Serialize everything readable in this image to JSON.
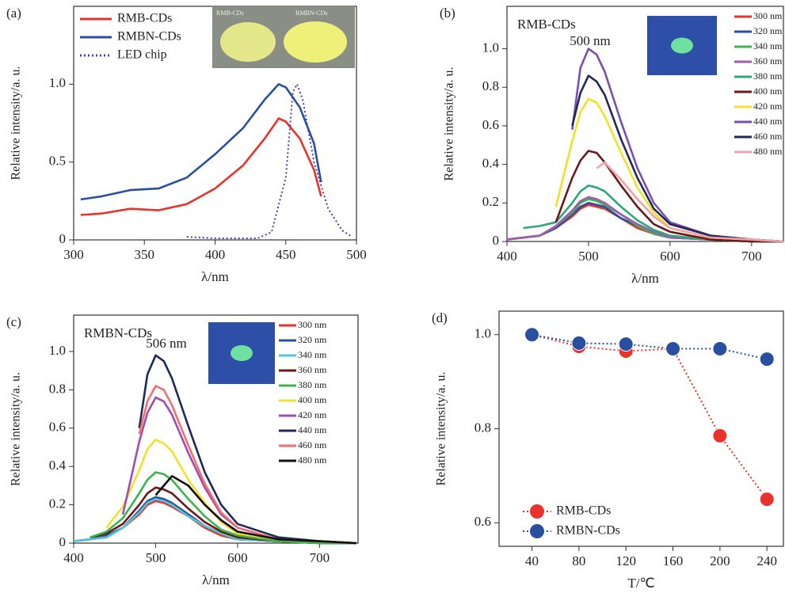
{
  "chart_data": [
    {
      "type": "line",
      "panel_label": "(a)",
      "xlabel": "λ/nm",
      "ylabel": "Relative intensity/a. u.",
      "xlim": [
        300,
        500
      ],
      "ylim": [
        0,
        1.5
      ],
      "xticks": [
        300,
        350,
        400,
        450,
        500
      ],
      "yticks": [
        0,
        0.5,
        {
          "value": 1,
          "label": "1.0"
        }
      ],
      "legend": "upper left",
      "inset_labels": [
        "RMB-CDs",
        "RMBN-CDs"
      ],
      "series": [
        {
          "name": "RMB-CDs",
          "color": "#e8322b",
          "line_style": "solid",
          "x": [
            305,
            320,
            340,
            360,
            380,
            400,
            420,
            435,
            445,
            450,
            460,
            470,
            475
          ],
          "values": [
            0.16,
            0.17,
            0.2,
            0.19,
            0.23,
            0.33,
            0.48,
            0.65,
            0.78,
            0.76,
            0.65,
            0.45,
            0.28
          ]
        },
        {
          "name": "RMBN-CDs",
          "color": "#2b4fa0",
          "line_style": "solid",
          "x": [
            305,
            320,
            340,
            360,
            380,
            400,
            420,
            435,
            445,
            450,
            460,
            470,
            475
          ],
          "values": [
            0.26,
            0.28,
            0.32,
            0.33,
            0.4,
            0.55,
            0.72,
            0.9,
            1.0,
            0.98,
            0.85,
            0.62,
            0.37
          ]
        },
        {
          "name": "LED chip",
          "color": "#4a3fa8",
          "line_style": "dotted",
          "x": [
            380,
            400,
            430,
            440,
            450,
            455,
            458,
            462,
            470,
            480,
            490,
            497
          ],
          "values": [
            0.02,
            0.01,
            0.01,
            0.05,
            0.4,
            0.95,
            1.0,
            0.9,
            0.5,
            0.2,
            0.06,
            0.02
          ]
        }
      ]
    },
    {
      "type": "line",
      "panel_label": "(b)",
      "title": "RMB-CDs",
      "annotation": "500 nm",
      "xlabel": "λ/nm",
      "ylabel": "Relative intensity/a. u.",
      "xlim": [
        400,
        739
      ],
      "ylim": [
        0,
        1.22
      ],
      "xticks": [
        400,
        500,
        600,
        700
      ],
      "yticks": [
        0,
        0.2,
        0.4,
        0.6,
        0.8,
        {
          "value": 1,
          "label": "1.0"
        }
      ],
      "legend": "upper right",
      "x": [
        400,
        420,
        440,
        460,
        480,
        490,
        500,
        510,
        520,
        540,
        560,
        580,
        600,
        650,
        700,
        739
      ],
      "series": [
        {
          "name": "300 nm",
          "color": "#e8322b",
          "values": [
            0.01,
            0.02,
            0.03,
            0.07,
            0.13,
            0.17,
            0.19,
            0.18,
            0.17,
            0.12,
            0.07,
            0.04,
            0.02,
            0.01,
            0,
            0
          ]
        },
        {
          "name": "320 nm",
          "color": "#2b4fa0",
          "values": [
            0.01,
            0.02,
            0.03,
            0.07,
            0.14,
            0.18,
            0.2,
            0.19,
            0.18,
            0.12,
            0.08,
            0.04,
            0.02,
            0.01,
            0,
            0
          ]
        },
        {
          "name": "340 nm",
          "color": "#3cb44b",
          "values": [
            0.01,
            0.02,
            0.03,
            0.08,
            0.15,
            0.2,
            0.22,
            0.21,
            0.19,
            0.14,
            0.08,
            0.04,
            0.02,
            0.01,
            0,
            0
          ]
        },
        {
          "name": "360 nm",
          "color": "#a05cb0",
          "values": [
            0.01,
            0.02,
            0.03,
            0.08,
            0.16,
            0.21,
            0.23,
            0.22,
            0.2,
            0.14,
            0.09,
            0.05,
            0.02,
            0.01,
            0,
            0
          ]
        },
        {
          "name": "380 nm",
          "color": "#2aa878",
          "values": [
            null,
            0.07,
            0.08,
            0.1,
            0.2,
            0.26,
            0.29,
            0.28,
            0.26,
            0.18,
            0.11,
            0.06,
            0.03,
            0.01,
            0,
            0
          ]
        },
        {
          "name": "400 nm",
          "color": "#6b1a1a",
          "values": [
            null,
            null,
            null,
            0.1,
            0.33,
            0.42,
            0.47,
            0.46,
            0.41,
            0.29,
            0.18,
            0.09,
            0.05,
            0.01,
            0,
            0
          ]
        },
        {
          "name": "420 nm",
          "color": "#f2e02a",
          "values": [
            null,
            null,
            null,
            0.18,
            0.52,
            0.67,
            0.74,
            0.72,
            0.65,
            0.46,
            0.28,
            0.15,
            0.07,
            0.02,
            0.01,
            0
          ]
        },
        {
          "name": "440 nm",
          "color": "#7a4fb0",
          "values": [
            null,
            null,
            null,
            null,
            0.58,
            0.9,
            1.0,
            0.97,
            0.88,
            0.62,
            0.38,
            0.2,
            0.1,
            0.03,
            0.01,
            0
          ]
        },
        {
          "name": "460 nm",
          "color": "#1f2a5a",
          "values": [
            null,
            null,
            null,
            null,
            0.6,
            0.77,
            0.86,
            0.83,
            0.76,
            0.53,
            0.33,
            0.17,
            0.09,
            0.03,
            0.01,
            0
          ]
        },
        {
          "name": "480 nm",
          "color": "#f4a0a8",
          "values": [
            null,
            null,
            null,
            null,
            null,
            null,
            null,
            0.38,
            0.41,
            0.32,
            0.22,
            0.13,
            0.07,
            0.02,
            0.01,
            0
          ]
        }
      ]
    },
    {
      "type": "line",
      "panel_label": "(c)",
      "title": "RMBN-CDs",
      "annotation": "506 nm",
      "xlabel": "λ/nm",
      "ylabel": "Relative intensity/a. u.",
      "xlim": [
        400,
        747
      ],
      "ylim": [
        0,
        1.19
      ],
      "xticks": [
        400,
        500,
        600,
        700
      ],
      "yticks": [
        0,
        0.2,
        0.4,
        0.6,
        0.8,
        {
          "value": 1,
          "label": "1.0"
        }
      ],
      "legend": "upper right",
      "x": [
        400,
        420,
        440,
        460,
        480,
        490,
        500,
        510,
        520,
        540,
        560,
        580,
        600,
        650,
        700,
        745
      ],
      "series": [
        {
          "name": "300 nm",
          "color": "#e8322b",
          "values": [
            0.01,
            0.02,
            0.03,
            0.08,
            0.15,
            0.2,
            0.22,
            0.21,
            0.19,
            0.14,
            0.08,
            0.04,
            0.02,
            0.01,
            0,
            0
          ]
        },
        {
          "name": "320 nm",
          "color": "#2b4fa0",
          "values": [
            0.01,
            0.02,
            0.04,
            0.08,
            0.17,
            0.22,
            0.24,
            0.23,
            0.21,
            0.15,
            0.09,
            0.05,
            0.02,
            0.01,
            0,
            0
          ]
        },
        {
          "name": "340 nm",
          "color": "#4fc7d8",
          "values": [
            0.01,
            0.02,
            0.03,
            0.08,
            0.16,
            0.21,
            0.23,
            0.22,
            0.2,
            0.14,
            0.09,
            0.05,
            0.02,
            0.01,
            0,
            0
          ]
        },
        {
          "name": "360 nm",
          "color": "#6b1a1a",
          "values": [
            null,
            0.03,
            0.05,
            0.1,
            0.2,
            0.26,
            0.29,
            0.28,
            0.26,
            0.18,
            0.11,
            0.06,
            0.03,
            0.01,
            0,
            0
          ]
        },
        {
          "name": "380 nm",
          "color": "#3cb44b",
          "values": [
            null,
            0.03,
            0.06,
            0.13,
            0.26,
            0.33,
            0.37,
            0.36,
            0.33,
            0.23,
            0.14,
            0.07,
            0.04,
            0.01,
            0,
            0
          ]
        },
        {
          "name": "400 nm",
          "color": "#f2e02a",
          "values": [
            null,
            null,
            0.08,
            0.19,
            0.38,
            0.49,
            0.54,
            0.52,
            0.48,
            0.33,
            0.21,
            0.11,
            0.05,
            0.02,
            0.01,
            0
          ]
        },
        {
          "name": "420 nm",
          "color": "#a24bb0",
          "values": [
            null,
            null,
            null,
            0.15,
            0.53,
            0.68,
            0.76,
            0.74,
            0.67,
            0.47,
            0.29,
            0.15,
            0.08,
            0.02,
            0.01,
            0
          ]
        },
        {
          "name": "440 nm",
          "color": "#1f2a5a",
          "values": [
            null,
            null,
            null,
            null,
            0.6,
            0.88,
            0.98,
            0.95,
            0.86,
            0.61,
            0.37,
            0.2,
            0.1,
            0.03,
            0.01,
            0
          ]
        },
        {
          "name": "460 nm",
          "color": "#f07070",
          "values": [
            null,
            null,
            null,
            null,
            0.57,
            0.74,
            0.82,
            0.8,
            0.72,
            0.51,
            0.31,
            0.16,
            0.08,
            0.02,
            0.01,
            0
          ]
        },
        {
          "name": "480 nm",
          "color": "#111111",
          "values": [
            null,
            null,
            null,
            null,
            null,
            null,
            0.25,
            0.3,
            0.35,
            0.3,
            0.2,
            0.12,
            0.06,
            0.02,
            0.01,
            0
          ]
        }
      ]
    },
    {
      "type": "line",
      "panel_label": "(d)",
      "xlabel": "T/℃",
      "ylabel": "Relative intensity/a. u.",
      "xlim": [
        12,
        254
      ],
      "ylim": [
        0.55,
        1.05
      ],
      "xticks": [
        40,
        80,
        120,
        160,
        200,
        240
      ],
      "yticks": [
        0.6,
        0.8,
        {
          "value": 1,
          "label": "1.0"
        }
      ],
      "legend": "lower left",
      "marker": "circle",
      "x": [
        40,
        80,
        120,
        160,
        200,
        240
      ],
      "series": [
        {
          "name": "RMB-CDs",
          "color": "#e8322b",
          "line_style": "dotted",
          "values": [
            1.0,
            0.975,
            0.965,
            0.97,
            0.785,
            0.65
          ]
        },
        {
          "name": "RMBN-CDs",
          "color": "#2b4fa0",
          "line_style": "dotted",
          "values": [
            1.0,
            0.982,
            0.98,
            0.97,
            0.97,
            0.948
          ]
        }
      ]
    }
  ]
}
